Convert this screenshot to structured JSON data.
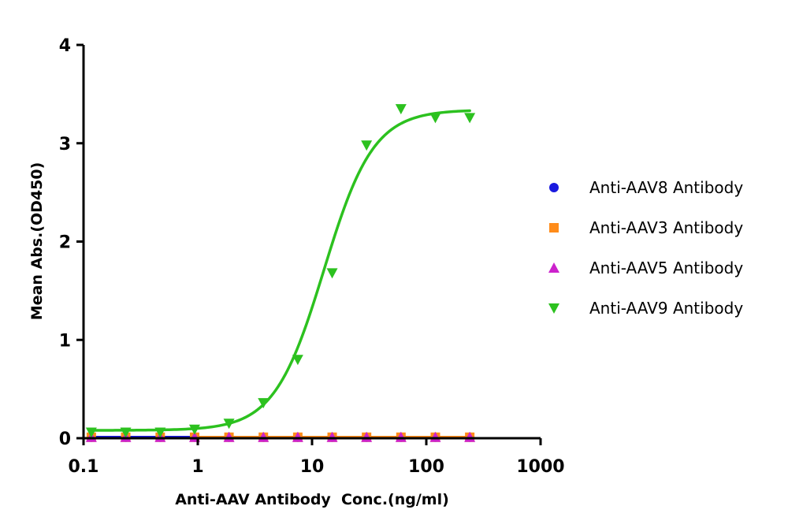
{
  "chart_data": {
    "type": "scatter",
    "x_scale": "log",
    "xlabel": "Anti-AAV Antibody  Conc.(ng/ml)",
    "ylabel": "Mean Abs.(OD450)",
    "xlim": [
      0.1,
      1000
    ],
    "ylim": [
      0,
      4
    ],
    "x_ticks": [
      0.1,
      1,
      10,
      100,
      1000
    ],
    "x_tick_labels": [
      "0.1",
      "1",
      "10",
      "100",
      "1000"
    ],
    "y_ticks": [
      0,
      1,
      2,
      3,
      4
    ],
    "y_tick_labels": [
      "0",
      "1",
      "2",
      "3",
      "4"
    ],
    "grid": false,
    "legend_position": "right",
    "series": [
      {
        "name": "Anti-AAV8 Antibody",
        "marker": "circle",
        "color": "#1a1adf",
        "x": [
          0.117,
          0.234,
          0.469,
          0.938,
          1.875,
          3.75,
          7.5,
          15,
          30,
          60,
          120,
          240
        ],
        "y": [
          0.01,
          0.01,
          0.01,
          0.01,
          0.01,
          0.01,
          0.01,
          0.01,
          0.01,
          0.01,
          0.01,
          0.01
        ],
        "fit_color": "#1a1adf",
        "fit_x_range": [
          0.117,
          0.938
        ]
      },
      {
        "name": "Anti-AAV3 Antibody",
        "marker": "square",
        "color": "#ff8c1a",
        "x": [
          0.117,
          0.234,
          0.469,
          0.938,
          1.875,
          3.75,
          7.5,
          15,
          30,
          60,
          120,
          240
        ],
        "y": [
          0.01,
          0.01,
          0.01,
          0.01,
          0.01,
          0.01,
          0.01,
          0.01,
          0.01,
          0.01,
          0.01,
          0.01
        ],
        "fit_color": "#ff8c1a",
        "fit_x_range": [
          0.938,
          240
        ]
      },
      {
        "name": "Anti-AAV5 Antibody",
        "marker": "triangle-up",
        "color": "#cc22cc",
        "x": [
          0.117,
          0.234,
          0.469,
          0.938,
          1.875,
          3.75,
          7.5,
          15,
          30,
          60,
          120,
          240
        ],
        "y": [
          0.01,
          0.01,
          0.01,
          0.01,
          0.01,
          0.01,
          0.01,
          0.01,
          0.01,
          0.01,
          0.01,
          0.01
        ]
      },
      {
        "name": "Anti-AAV9 Antibody",
        "marker": "triangle-down",
        "color": "#2cc11f",
        "x": [
          0.117,
          0.234,
          0.469,
          0.938,
          1.875,
          3.75,
          7.5,
          15,
          30,
          60,
          120,
          240
        ],
        "y": [
          0.06,
          0.06,
          0.06,
          0.09,
          0.15,
          0.36,
          0.8,
          1.68,
          2.98,
          3.35,
          3.26,
          3.26
        ],
        "fit_color": "#2cc11f",
        "fit": {
          "bottom": 0.08,
          "top": 3.34,
          "ec50": 12.7,
          "hill": 2.0
        },
        "fit_x_range": [
          0.117,
          240
        ]
      }
    ]
  }
}
